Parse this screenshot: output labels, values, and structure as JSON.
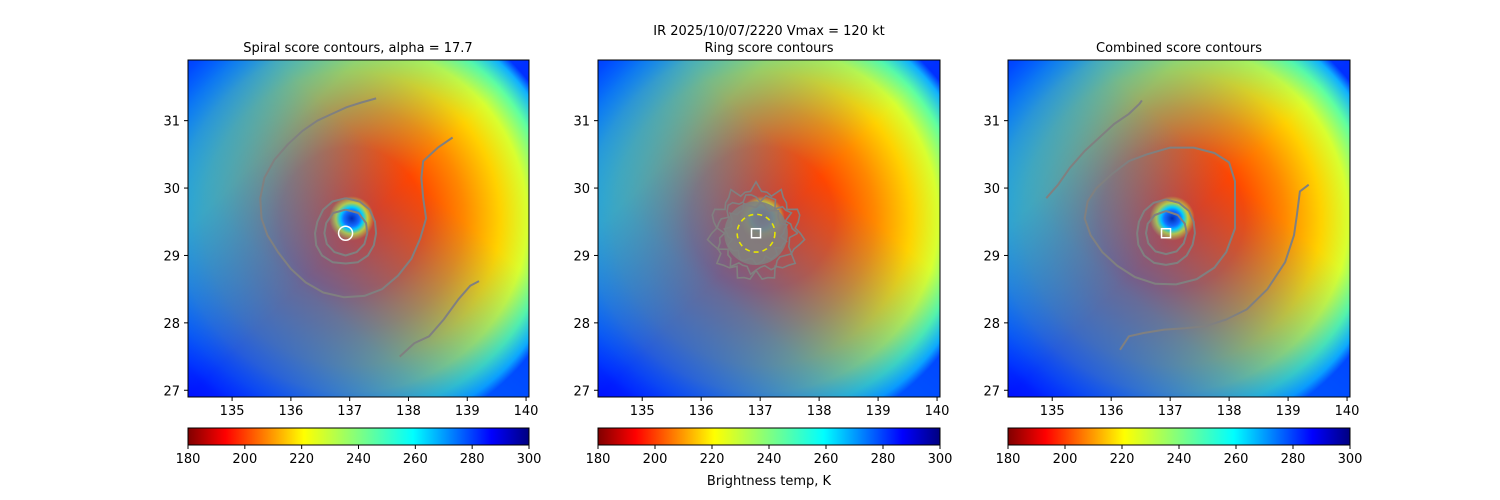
{
  "figure": {
    "suptitle_line1": "IR  2025/10/07/2220    Vmax = 120 kt",
    "colorbar_label": "Brightness temp, K"
  },
  "chart_data": [
    {
      "type": "heatmap",
      "title": "Spiral score contours, alpha = 17.7",
      "xlim": [
        134.25,
        140.05
      ],
      "ylim": [
        26.9,
        31.9
      ],
      "xticks": [
        135,
        136,
        137,
        138,
        139,
        140
      ],
      "yticks": [
        27,
        28,
        29,
        30,
        31
      ],
      "center": [
        136.93,
        29.33
      ],
      "marker": "circle",
      "contour_color": "#808080",
      "contours": [
        [
          [
            137.45,
            31.33
          ],
          [
            137.2,
            31.27
          ],
          [
            136.95,
            31.2
          ],
          [
            136.7,
            31.1
          ],
          [
            136.45,
            31.0
          ],
          [
            136.2,
            30.85
          ],
          [
            135.95,
            30.65
          ],
          [
            135.72,
            30.42
          ],
          [
            135.55,
            30.15
          ],
          [
            135.48,
            29.85
          ],
          [
            135.5,
            29.55
          ],
          [
            135.6,
            29.3
          ],
          [
            135.78,
            29.05
          ],
          [
            136.0,
            28.8
          ],
          [
            136.25,
            28.6
          ],
          [
            136.55,
            28.45
          ],
          [
            136.9,
            28.38
          ],
          [
            137.25,
            28.4
          ],
          [
            137.55,
            28.5
          ],
          [
            137.82,
            28.7
          ],
          [
            138.05,
            28.95
          ],
          [
            138.2,
            29.25
          ],
          [
            138.3,
            29.55
          ],
          [
            138.25,
            29.85
          ],
          [
            138.22,
            30.15
          ],
          [
            138.25,
            30.4
          ],
          [
            138.5,
            30.6
          ],
          [
            138.75,
            30.75
          ]
        ],
        [
          [
            137.85,
            27.5
          ],
          [
            138.1,
            27.7
          ],
          [
            138.35,
            27.8
          ],
          [
            138.6,
            28.05
          ],
          [
            138.85,
            28.35
          ],
          [
            139.05,
            28.55
          ],
          [
            139.2,
            28.62
          ]
        ],
        [
          [
            136.93,
            29.85
          ],
          [
            137.17,
            29.8
          ],
          [
            137.34,
            29.68
          ],
          [
            137.43,
            29.5
          ],
          [
            137.45,
            29.33
          ],
          [
            137.41,
            29.15
          ],
          [
            137.31,
            29.0
          ],
          [
            137.14,
            28.9
          ],
          [
            136.93,
            28.88
          ],
          [
            136.71,
            28.9
          ],
          [
            136.53,
            29.0
          ],
          [
            136.43,
            29.15
          ],
          [
            136.41,
            29.33
          ],
          [
            136.45,
            29.5
          ],
          [
            136.55,
            29.68
          ],
          [
            136.71,
            29.8
          ],
          [
            136.93,
            29.85
          ]
        ],
        [
          [
            136.93,
            29.68
          ],
          [
            137.15,
            29.63
          ],
          [
            137.28,
            29.48
          ],
          [
            137.3,
            29.33
          ],
          [
            137.25,
            29.17
          ],
          [
            137.12,
            29.05
          ],
          [
            136.93,
            29.0
          ],
          [
            136.74,
            29.05
          ],
          [
            136.61,
            29.17
          ],
          [
            136.57,
            29.33
          ],
          [
            136.6,
            29.48
          ],
          [
            136.72,
            29.63
          ],
          [
            136.93,
            29.68
          ]
        ]
      ],
      "colorbar": {
        "cmap": "jet_r",
        "vmin": 180,
        "vmax": 300,
        "ticks": [
          180,
          200,
          220,
          240,
          260,
          280,
          300
        ]
      }
    },
    {
      "type": "heatmap",
      "title": "Ring score contours",
      "xlim": [
        134.25,
        140.05
      ],
      "ylim": [
        26.9,
        31.9
      ],
      "xticks": [
        135,
        136,
        137,
        138,
        139,
        140
      ],
      "yticks": [
        27,
        28,
        29,
        30,
        31
      ],
      "center": [
        136.93,
        29.33
      ],
      "marker": "square",
      "contour_color": "#808080",
      "ring_radii": [
        0.75,
        0.62,
        0.48
      ],
      "inner_ring": 0.32,
      "colorbar": {
        "cmap": "jet_r",
        "vmin": 180,
        "vmax": 300,
        "ticks": [
          180,
          200,
          220,
          240,
          260,
          280,
          300
        ]
      }
    },
    {
      "type": "heatmap",
      "title": "Combined score contours",
      "xlim": [
        134.25,
        140.05
      ],
      "ylim": [
        26.9,
        31.9
      ],
      "xticks": [
        135,
        136,
        137,
        138,
        139,
        140
      ],
      "yticks": [
        27,
        28,
        29,
        30,
        31
      ],
      "center": [
        136.93,
        29.33
      ],
      "marker": "square",
      "contour_color": "#808080",
      "contours": [
        [
          [
            134.9,
            29.85
          ],
          [
            135.1,
            30.05
          ],
          [
            135.3,
            30.3
          ],
          [
            135.55,
            30.55
          ],
          [
            135.8,
            30.75
          ],
          [
            136.05,
            30.95
          ],
          [
            136.3,
            31.1
          ],
          [
            136.48,
            31.25
          ],
          [
            136.52,
            31.3
          ]
        ],
        [
          [
            136.0,
            30.2
          ],
          [
            136.3,
            30.4
          ],
          [
            136.6,
            30.5
          ],
          [
            137.0,
            30.6
          ],
          [
            137.4,
            30.6
          ],
          [
            137.75,
            30.52
          ],
          [
            138.0,
            30.38
          ],
          [
            138.1,
            30.1
          ],
          [
            138.1,
            29.75
          ],
          [
            138.1,
            29.4
          ],
          [
            137.95,
            29.05
          ],
          [
            137.75,
            28.82
          ],
          [
            137.45,
            28.65
          ],
          [
            137.1,
            28.57
          ],
          [
            136.75,
            28.58
          ],
          [
            136.4,
            28.68
          ],
          [
            136.1,
            28.85
          ],
          [
            135.85,
            29.05
          ],
          [
            135.65,
            29.3
          ],
          [
            135.55,
            29.55
          ],
          [
            135.6,
            29.8
          ],
          [
            135.75,
            30.0
          ],
          [
            136.0,
            30.2
          ]
        ],
        [
          [
            136.15,
            27.6
          ],
          [
            136.3,
            27.8
          ],
          [
            136.55,
            27.85
          ],
          [
            136.9,
            27.9
          ],
          [
            137.25,
            27.92
          ],
          [
            137.6,
            27.95
          ],
          [
            137.95,
            28.05
          ],
          [
            138.3,
            28.2
          ],
          [
            138.65,
            28.5
          ],
          [
            138.95,
            28.9
          ],
          [
            139.1,
            29.3
          ],
          [
            139.15,
            29.6
          ],
          [
            139.2,
            29.95
          ],
          [
            139.35,
            30.05
          ]
        ],
        [
          [
            136.93,
            29.83
          ],
          [
            137.15,
            29.78
          ],
          [
            137.32,
            29.66
          ],
          [
            137.4,
            29.5
          ],
          [
            137.42,
            29.33
          ],
          [
            137.38,
            29.16
          ],
          [
            137.28,
            29.0
          ],
          [
            137.12,
            28.89
          ],
          [
            136.93,
            28.86
          ],
          [
            136.73,
            28.89
          ],
          [
            136.56,
            29.0
          ],
          [
            136.46,
            29.16
          ],
          [
            136.44,
            29.33
          ],
          [
            136.47,
            29.5
          ],
          [
            136.56,
            29.66
          ],
          [
            136.72,
            29.78
          ],
          [
            136.93,
            29.83
          ]
        ],
        [
          [
            136.93,
            29.66
          ],
          [
            137.13,
            29.6
          ],
          [
            137.25,
            29.47
          ],
          [
            137.28,
            29.33
          ],
          [
            137.23,
            29.18
          ],
          [
            137.11,
            29.06
          ],
          [
            136.93,
            29.02
          ],
          [
            136.75,
            29.06
          ],
          [
            136.63,
            29.18
          ],
          [
            136.59,
            29.33
          ],
          [
            136.62,
            29.47
          ],
          [
            136.74,
            29.6
          ],
          [
            136.93,
            29.66
          ]
        ]
      ],
      "colorbar": {
        "cmap": "jet_r",
        "vmin": 180,
        "vmax": 300,
        "ticks": [
          180,
          200,
          220,
          240,
          260,
          280,
          300
        ]
      }
    }
  ]
}
